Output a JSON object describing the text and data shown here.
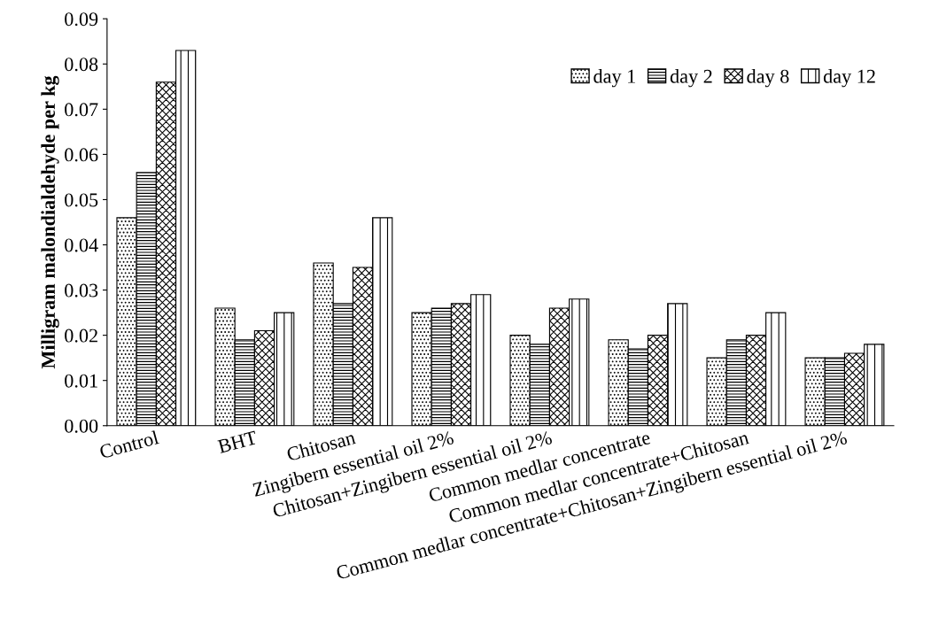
{
  "chart_data": {
    "type": "bar",
    "ylabel": "Milligram malondialdehyde per kg",
    "categories": [
      "Control",
      "BHT",
      "Chitosan",
      "Zingibern essential oil 2%",
      "Chitosan+Zingibern essential oil 2%",
      "Common medlar concentrate",
      "Common medlar concentrate+Chitosan",
      "Common medlar concentrate+Chitosan+Zingibern essential oil 2%"
    ],
    "series": [
      {
        "name": "day 1",
        "color": "#000000",
        "values": [
          0.046,
          0.026,
          0.036,
          0.025,
          0.02,
          0.019,
          0.015,
          0.015
        ]
      },
      {
        "name": "day 2",
        "color": "#000000",
        "values": [
          0.056,
          0.019,
          0.027,
          0.026,
          0.018,
          0.017,
          0.019,
          0.015
        ]
      },
      {
        "name": "day 8",
        "color": "#000000",
        "values": [
          0.076,
          0.021,
          0.035,
          0.027,
          0.026,
          0.02,
          0.02,
          0.016
        ]
      },
      {
        "name": "day 12",
        "color": "#000000",
        "values": [
          0.083,
          0.025,
          0.046,
          0.029,
          0.028,
          0.027,
          0.025,
          0.018
        ]
      }
    ],
    "ylim": [
      0,
      0.09
    ],
    "yticks": [
      {
        "value": 0,
        "label": "0.00"
      },
      {
        "value": 0.01,
        "label": "0.01"
      },
      {
        "value": 0.02,
        "label": "0.02"
      },
      {
        "value": 0.03,
        "label": "0.03"
      },
      {
        "value": 0.04,
        "label": "0.04"
      },
      {
        "value": 0.05,
        "label": "0.05"
      },
      {
        "value": 0.06,
        "label": "0.06"
      },
      {
        "value": 0.07,
        "label": "0.07"
      },
      {
        "value": 0.08,
        "label": "0.08"
      },
      {
        "value": 0.09,
        "label": "0.09"
      }
    ],
    "grid": false,
    "legend": "top right"
  }
}
